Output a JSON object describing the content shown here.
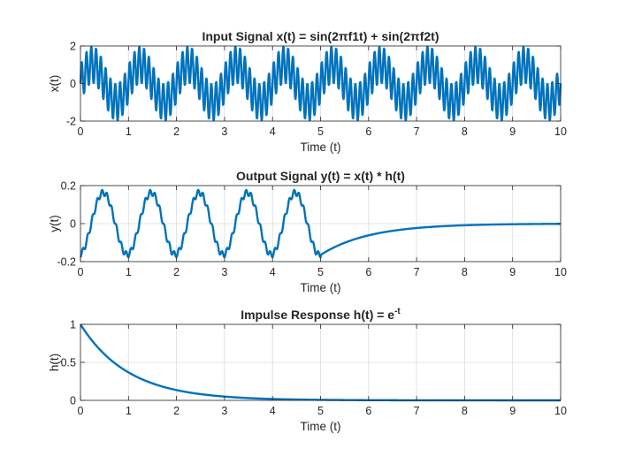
{
  "chart_data": [
    {
      "type": "line",
      "title": "Input Signal x(t) = sin(2πf1t) + sin(2πf2t)",
      "xlabel": "Time (t)",
      "ylabel": "x(t)",
      "xlim": [
        0,
        10
      ],
      "ylim": [
        -2,
        2
      ],
      "xticks": [
        0,
        1,
        2,
        3,
        4,
        5,
        6,
        7,
        8,
        9,
        10
      ],
      "yticks": [
        -2,
        0,
        2
      ],
      "grid": true,
      "line_color": "#0072BD",
      "series": [
        {
          "function": "x(t) = sin(2πf1t) + sin(2πf2t)",
          "f1": 1,
          "f2": 10,
          "sample_step": 0.01,
          "x": [
            0,
            0.05,
            0.1,
            0.15,
            0.2,
            0.25,
            0.3,
            0.35,
            0.4,
            0.45,
            0.5,
            0.55,
            0.6,
            0.65,
            0.7,
            0.75,
            0.8,
            0.85,
            0.9,
            0.95,
            1.0
          ],
          "y": [
            0,
            0.31,
            0.59,
            0.81,
            0.95,
            1.0,
            0.95,
            0.81,
            0.59,
            0.31,
            0,
            -0.31,
            -0.59,
            -0.81,
            -0.95,
            -1.0,
            -0.95,
            -0.81,
            -0.59,
            -0.31,
            0
          ]
        }
      ]
    },
    {
      "type": "line",
      "title": "Output Signal y(t) = x(t) * h(t)",
      "xlabel": "Time (t)",
      "ylabel": "y(t)",
      "xlim": [
        0,
        10
      ],
      "ylim": [
        -0.2,
        0.2
      ],
      "xticks": [
        0,
        1,
        2,
        3,
        4,
        5,
        6,
        7,
        8,
        9,
        10
      ],
      "yticks": [
        -0.2,
        0,
        0.2
      ],
      "grid": true,
      "line_color": "#0072BD",
      "series": [
        {
          "x": [
            0,
            0.25,
            0.5,
            0.75,
            1.0,
            1.25,
            1.5,
            1.75,
            2.0,
            2.5,
            3.0,
            3.5,
            4.0,
            4.5,
            5.0,
            5.5,
            6.0,
            6.5,
            7.0,
            7.5,
            8.0,
            8.5,
            9.0,
            9.5,
            10.0
          ],
          "y": [
            -0.16,
            0.05,
            0.16,
            0.03,
            -0.15,
            0.05,
            0.16,
            0.03,
            -0.15,
            0.16,
            -0.15,
            0.16,
            -0.15,
            0.16,
            -0.16,
            -0.1,
            -0.06,
            -0.036,
            -0.022,
            -0.013,
            -0.008,
            -0.005,
            -0.003,
            -0.002,
            -0.001
          ]
        }
      ]
    },
    {
      "type": "line",
      "title": "Impulse Response h(t) = e-t",
      "xlabel": "Time (t)",
      "ylabel": "h(t)",
      "xlim": [
        0,
        10
      ],
      "ylim": [
        0,
        1
      ],
      "xticks": [
        0,
        1,
        2,
        3,
        4,
        5,
        6,
        7,
        8,
        9,
        10
      ],
      "yticks": [
        0,
        0.5,
        1
      ],
      "grid": true,
      "line_color": "#0072BD",
      "series": [
        {
          "function": "h(t) = e^-t",
          "x": [
            0,
            0.5,
            1,
            1.5,
            2,
            2.5,
            3,
            3.5,
            4,
            5,
            6,
            7,
            8,
            9,
            10
          ],
          "y": [
            1,
            0.607,
            0.368,
            0.223,
            0.135,
            0.082,
            0.05,
            0.03,
            0.018,
            0.007,
            0.002,
            0.001,
            0,
            0,
            0
          ]
        }
      ]
    }
  ]
}
